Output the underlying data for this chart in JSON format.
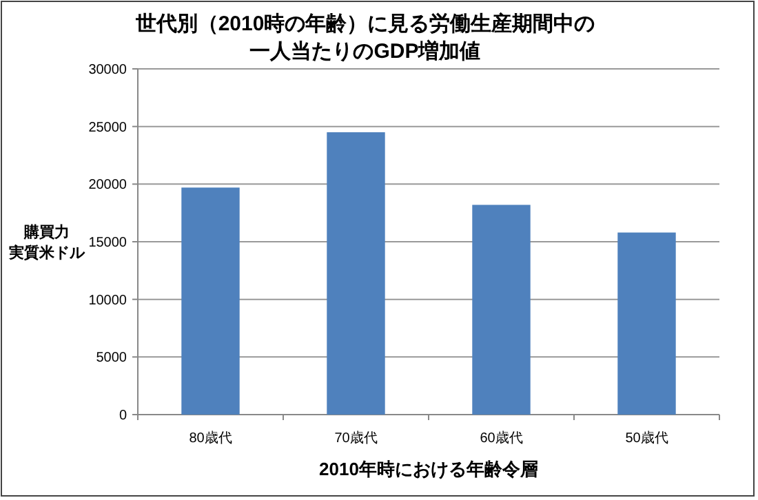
{
  "chart_data": {
    "type": "bar",
    "title": "世代別（2010時の年齢）に見る労働生産期間中の一人当たりのGDP増加値",
    "xlabel": "2010年時における年齢令層",
    "ylabel": "購買力実質米ドル",
    "categories": [
      "80歳代",
      "70歳代",
      "60歳代",
      "50歳代"
    ],
    "values": [
      19700,
      24500,
      18200,
      15800
    ],
    "color": "#4f81bd",
    "ylim": [
      0,
      30000
    ],
    "yticks": [
      0,
      5000,
      10000,
      15000,
      20000,
      25000,
      30000
    ],
    "grid": "y"
  }
}
